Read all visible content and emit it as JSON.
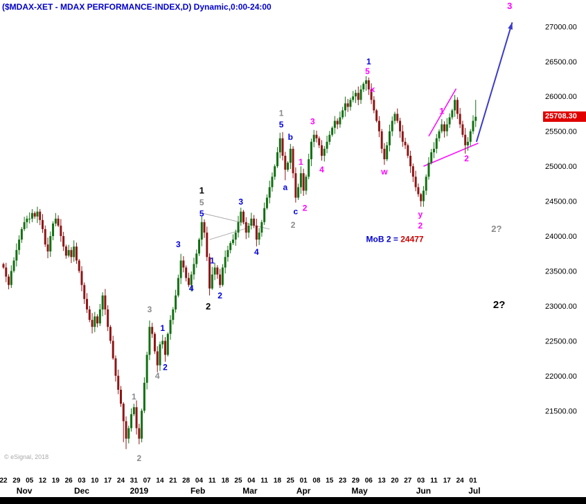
{
  "title": "($MDAX-XET - MDAX PERFORMANCE-INDEX,D) Dynamic,0:00-24:00",
  "watermark": "© eSignal, 2018",
  "colors": {
    "title": "#0000cc",
    "background": "#ffffff",
    "candle_up": "#127012",
    "candle_down": "#8e1616",
    "price_tag_bg": "#e00000",
    "price_tag_text": "#ffffff",
    "axis_text": "#000000",
    "gray_label": "#8a8a8a",
    "blue_label": "#0000dd",
    "black_label": "#000000",
    "magenta_label": "#ff00ff",
    "arrow_blue": "#3a3acc",
    "trendline_gray": "#aaaaaa"
  },
  "chart_data": {
    "type": "candlestick",
    "symbol": "$MDAX-XET",
    "description": "MDAX PERFORMANCE-INDEX",
    "interval": "D",
    "session": "0:00-24:00",
    "last_price": 25708.3,
    "last_price_label": "25708.30",
    "y_axis": {
      "min": 20660,
      "max": 27380,
      "ticks": [
        27000,
        26500,
        26000,
        25500,
        25000,
        24500,
        24000,
        23500,
        23000,
        22500,
        22000,
        21500
      ]
    },
    "x_axis": {
      "tick_step": 5,
      "tick_labels": [
        "22",
        "29",
        "05",
        "12",
        "19",
        "26",
        "03",
        "10",
        "17",
        "24",
        "31",
        "07",
        "14",
        "21",
        "28",
        "04",
        "11",
        "18",
        "25",
        "04",
        "11",
        "18",
        "25",
        "01",
        "08",
        "15",
        "23",
        "29",
        "06",
        "13",
        "20",
        "27",
        "03",
        "11",
        "17",
        "24",
        "01"
      ],
      "month_labels": [
        {
          "label": "Nov",
          "t": 8
        },
        {
          "label": "Dec",
          "t": 30
        },
        {
          "label": "2019",
          "t": 52
        },
        {
          "label": "Feb",
          "t": 74.5
        },
        {
          "label": "Mar",
          "t": 94.5
        },
        {
          "label": "Apr",
          "t": 115
        },
        {
          "label": "May",
          "t": 136.5
        },
        {
          "label": "Jun",
          "t": 161
        },
        {
          "label": "Jul",
          "t": 180.5
        }
      ]
    },
    "open_first": 23600,
    "closes": [
      23550,
      23420,
      23300,
      23500,
      23650,
      23800,
      23950,
      24100,
      24200,
      24250,
      24250,
      24330,
      24280,
      24350,
      24230,
      24100,
      23880,
      23780,
      24000,
      24180,
      24250,
      24150,
      24000,
      23850,
      23720,
      23800,
      23700,
      23850,
      23650,
      23500,
      23300,
      23100,
      22950,
      22800,
      22700,
      22850,
      22750,
      22950,
      23150,
      22950,
      22700,
      22500,
      22250,
      22000,
      21800,
      21600,
      21350,
      21100,
      21250,
      21450,
      21550,
      21250,
      21100,
      21500,
      21900,
      22300,
      22700,
      22600,
      22350,
      22150,
      22450,
      22500,
      22300,
      22600,
      22800,
      22950,
      23150,
      23400,
      23650,
      23550,
      23400,
      23300,
      23450,
      23600,
      23750,
      23950,
      24200,
      24050,
      23700,
      23250,
      23450,
      23550,
      23450,
      23300,
      23550,
      23700,
      23800,
      23900,
      23950,
      24050,
      24200,
      24350,
      24200,
      24050,
      24150,
      24250,
      24150,
      23950,
      24050,
      24200,
      24400,
      24550,
      24700,
      24850,
      25000,
      25200,
      25400,
      25150,
      24950,
      25050,
      25250,
      24900,
      24550,
      24700,
      24900,
      24650,
      24850,
      25100,
      25350,
      25450,
      25400,
      25300,
      25150,
      25250,
      25350,
      25450,
      25550,
      25650,
      25600,
      25700,
      25800,
      25900,
      25850,
      25950,
      26000,
      26050,
      25950,
      26100,
      26180,
      26230,
      26100,
      25950,
      25800,
      25650,
      25500,
      25250,
      25100,
      25300,
      25500,
      25650,
      25750,
      25650,
      25500,
      25350,
      25300,
      25150,
      25000,
      24850,
      24700,
      24600,
      24500,
      24650,
      24850,
      25050,
      25200,
      25250,
      25400,
      25500,
      25600,
      25500,
      25600,
      25700,
      25800,
      25950,
      25750,
      25600,
      25450,
      25300,
      25350,
      25500,
      25650,
      25708.3
    ],
    "wick_overrides": {
      "46": {
        "low": 21050
      },
      "47": {
        "low": 20950
      },
      "52": {
        "low": 21020
      },
      "62": {
        "low": 22200
      },
      "76": {
        "high": 24280
      },
      "79": {
        "low": 23150
      },
      "80": {
        "high": 23560
      },
      "106": {
        "high": 25480
      },
      "108": {
        "low": 24800
      },
      "112": {
        "low": 24480
      },
      "119": {
        "high": 25520
      },
      "122": {
        "low": 25080
      },
      "139": {
        "high": 26290
      },
      "146": {
        "low": 25020
      },
      "160": {
        "low": 24420
      },
      "173": {
        "high": 26020
      },
      "177": {
        "low": 25180
      },
      "181": {
        "high": 25950,
        "low": 25560
      }
    },
    "annotations": [
      {
        "t": 50,
        "p": 21700,
        "text": "1",
        "color": "gray",
        "size": 12
      },
      {
        "t": 52,
        "p": 20820,
        "text": "2",
        "color": "gray",
        "size": 12
      },
      {
        "t": 56,
        "p": 22950,
        "text": "3",
        "color": "gray",
        "size": 12
      },
      {
        "t": 59,
        "p": 22000,
        "text": "4",
        "color": "gray",
        "size": 12
      },
      {
        "t": 76,
        "p": 24480,
        "text": "5",
        "color": "gray",
        "size": 12
      },
      {
        "t": 106.5,
        "p": 25760,
        "text": "1",
        "color": "gray",
        "size": 12
      },
      {
        "t": 111,
        "p": 24160,
        "text": "2",
        "color": "gray",
        "size": 12
      },
      {
        "t": 189,
        "p": 24100,
        "text": "2?",
        "color": "gray",
        "size": 13
      },
      {
        "t": 61,
        "p": 22680,
        "text": "1",
        "color": "blue",
        "size": 12
      },
      {
        "t": 62,
        "p": 22120,
        "text": "2",
        "color": "blue",
        "size": 12
      },
      {
        "t": 67,
        "p": 23880,
        "text": "3",
        "color": "blue",
        "size": 12
      },
      {
        "t": 72,
        "p": 23250,
        "text": "4",
        "color": "blue",
        "size": 12
      },
      {
        "t": 76,
        "p": 24320,
        "text": "5",
        "color": "blue",
        "size": 12
      },
      {
        "t": 80,
        "p": 23650,
        "text": "1",
        "color": "blue",
        "size": 12
      },
      {
        "t": 83,
        "p": 23150,
        "text": "2",
        "color": "blue",
        "size": 12
      },
      {
        "t": 91,
        "p": 24490,
        "text": "3",
        "color": "blue",
        "size": 12
      },
      {
        "t": 97,
        "p": 23770,
        "text": "4",
        "color": "blue",
        "size": 12
      },
      {
        "t": 106.5,
        "p": 25595,
        "text": "5",
        "color": "blue",
        "size": 12
      },
      {
        "t": 108,
        "p": 24700,
        "text": "a",
        "color": "blue",
        "size": 12
      },
      {
        "t": 110,
        "p": 25420,
        "text": "b",
        "color": "blue",
        "size": 12
      },
      {
        "t": 112,
        "p": 24350,
        "text": "c",
        "color": "blue",
        "size": 12
      },
      {
        "t": 140,
        "p": 26500,
        "text": "1",
        "color": "blue",
        "size": 12
      },
      {
        "t": 76,
        "p": 24650,
        "text": "1",
        "color": "black",
        "size": 13
      },
      {
        "t": 78.5,
        "p": 22990,
        "text": "2",
        "color": "black",
        "size": 13
      },
      {
        "t": 190,
        "p": 23010,
        "text": "2?",
        "color": "black",
        "size": 15
      },
      {
        "t": 139.5,
        "p": 26360,
        "text": "5",
        "color": "magenta",
        "size": 12
      },
      {
        "t": 141.5,
        "p": 26100,
        "text": "x",
        "color": "magenta",
        "size": 12
      },
      {
        "t": 146,
        "p": 24920,
        "text": "w",
        "color": "magenta",
        "size": 12
      },
      {
        "t": 159.8,
        "p": 24310,
        "text": "y",
        "color": "magenta",
        "size": 12
      },
      {
        "t": 159.8,
        "p": 24150,
        "text": "2",
        "color": "magenta",
        "size": 12
      },
      {
        "t": 114,
        "p": 25060,
        "text": "1",
        "color": "magenta",
        "size": 12
      },
      {
        "t": 115.5,
        "p": 24400,
        "text": "2",
        "color": "magenta",
        "size": 12
      },
      {
        "t": 118.5,
        "p": 25640,
        "text": "3",
        "color": "magenta",
        "size": 12
      },
      {
        "t": 122,
        "p": 24950,
        "text": "4",
        "color": "magenta",
        "size": 12
      },
      {
        "t": 168,
        "p": 25790,
        "text": "1",
        "color": "magenta",
        "size": 12
      },
      {
        "t": 177.5,
        "p": 25110,
        "text": "2",
        "color": "magenta",
        "size": 12
      },
      {
        "t": 194,
        "p": 27290,
        "text": "3",
        "color": "magenta",
        "size": 13
      }
    ],
    "trendlines": [
      {
        "t1": 76,
        "p1": 24330,
        "t2": 102,
        "p2": 24100,
        "color": "gray",
        "w": 1
      },
      {
        "t1": 79,
        "p1": 23950,
        "t2": 93,
        "p2": 24110,
        "color": "gray",
        "w": 1
      },
      {
        "t1": 161,
        "p1": 25000,
        "t2": 182,
        "p2": 25330,
        "color": "magenta",
        "w": 1.5
      },
      {
        "t1": 163,
        "p1": 25430,
        "t2": 173.5,
        "p2": 26110,
        "color": "magenta",
        "w": 1.5
      }
    ],
    "projection_arrow": {
      "t1": 181.3,
      "p1": 25350,
      "t2": 195,
      "p2": 27060
    },
    "mob_label": {
      "prefix": "MoB 2 = ",
      "value": "24477",
      "t": 139,
      "p": 23958,
      "prefix_color": "#0000cc",
      "value_color": "#cc0000"
    }
  }
}
